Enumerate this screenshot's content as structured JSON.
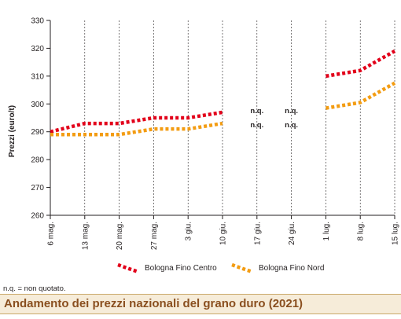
{
  "chart_data": {
    "type": "line",
    "title": "Andamento dei prezzi nazionali del grano duro (2021)",
    "ylabel": "Prezzi (euro/t)",
    "xlabel": "",
    "ylim": [
      260,
      330
    ],
    "yticks": [
      260,
      270,
      280,
      290,
      300,
      310,
      320,
      330
    ],
    "grid": "vertical",
    "legend_position": "bottom",
    "categories": [
      "6 mag.",
      "13 mag.",
      "20 mag.",
      "27 mag.",
      "3 giu.",
      "10 giu.",
      "17 giu.",
      "24 giu.",
      "1 lug.",
      "8 lug.",
      "15 lug."
    ],
    "series": [
      {
        "name": "Bologna Fino Centro",
        "color": "#e2001a",
        "values": [
          290,
          293,
          293,
          295,
          295,
          297,
          null,
          null,
          310,
          312,
          319
        ]
      },
      {
        "name": "Bologna Fino Nord",
        "color": "#f39c12",
        "values": [
          289,
          289,
          289,
          291,
          291,
          293,
          null,
          null,
          298.5,
          300.5,
          307.5
        ]
      }
    ],
    "annotations": [
      {
        "category": "17 giu.",
        "texts": [
          "n.q.",
          "n.q."
        ]
      },
      {
        "category": "24 giu.",
        "texts": [
          "n.q.",
          "n.q."
        ]
      }
    ],
    "note": "n.q. = non quotato."
  }
}
